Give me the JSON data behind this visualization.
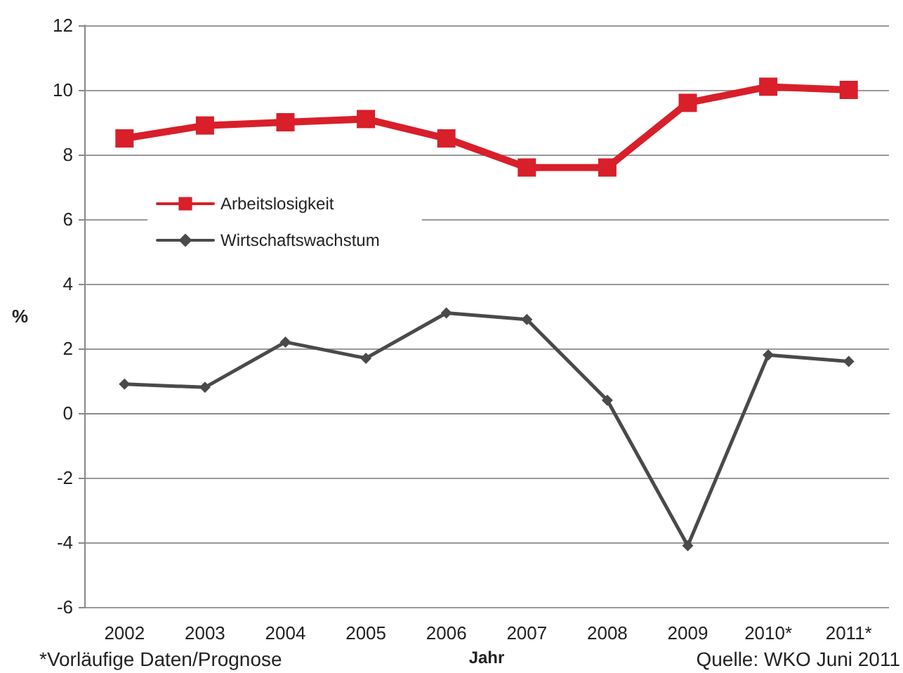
{
  "chart_data": {
    "type": "line",
    "xlabel": "Jahr",
    "ylabel": "%",
    "categories": [
      "2002",
      "2003",
      "2004",
      "2005",
      "2006",
      "2007",
      "2008",
      "2009",
      "2010*",
      "2011*"
    ],
    "series": [
      {
        "name": "Arbeitslosigkeit",
        "color": "#d81f2a",
        "marker": "square",
        "values": [
          8.5,
          8.9,
          9.0,
          9.1,
          8.5,
          7.6,
          7.6,
          9.6,
          10.1,
          10.0
        ]
      },
      {
        "name": "Wirtschaftswachstum",
        "color": "#4a4a4a",
        "marker": "diamond",
        "values": [
          0.9,
          0.8,
          2.2,
          1.7,
          3.1,
          2.9,
          0.4,
          -4.1,
          1.8,
          1.6
        ]
      }
    ],
    "ylim": [
      -6,
      12
    ],
    "yticks": [
      -6,
      -4,
      -2,
      0,
      2,
      4,
      6,
      8,
      10,
      12
    ],
    "grid": "y",
    "legend": "left",
    "annotations": [
      "*Vorläufige Daten/Prognose",
      "Quelle: WKO Juni 2011"
    ]
  }
}
